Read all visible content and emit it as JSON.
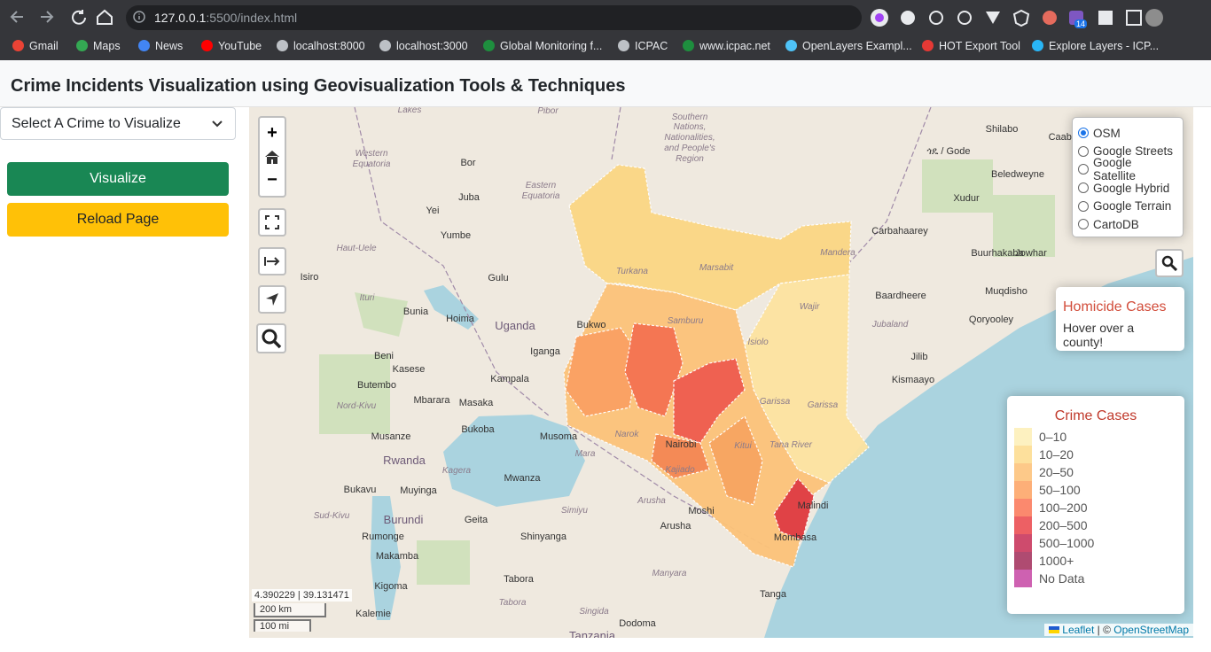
{
  "browser": {
    "url_host": "127.0.0.1",
    "url_path": ":5500/index.html",
    "extension_badge": "14",
    "bookmarks": [
      "Gmail",
      "Maps",
      "News",
      "YouTube",
      "localhost:8000",
      "localhost:3000",
      "Global Monitoring f...",
      "ICPAC",
      "www.icpac.net",
      "OpenLayers Exampl...",
      "HOT Export Tool",
      "Explore Layers - ICP..."
    ]
  },
  "header": {
    "title": "Crime Incidents Visualization using Geovisualization Tools & Techniques"
  },
  "sidebar": {
    "select_placeholder": "Select A Crime to Visualize",
    "visualize_button": "Visualize",
    "reload_button": "Reload Page"
  },
  "map": {
    "zoom_in": "+",
    "zoom_out": "−",
    "layers": [
      "OSM",
      "Google Streets",
      "Google Satellite",
      "Google Hybrid",
      "Google Terrain",
      "CartoDB"
    ],
    "selected_layer": "OSM",
    "info": {
      "title": "Homicide Cases",
      "text": "Hover over a county!"
    },
    "legend": {
      "title": "Crime Cases",
      "items": [
        {
          "label": "0–10",
          "color": "#fdedb0"
        },
        {
          "label": "10–20",
          "color": "#fdd883"
        },
        {
          "label": "20–50",
          "color": "#fdbb6c"
        },
        {
          "label": "50–100",
          "color": "#fd9b56"
        },
        {
          "label": "100–200",
          "color": "#fa6c4a"
        },
        {
          "label": "200–500",
          "color": "#e8383d"
        },
        {
          "label": "500–1000",
          "color": "#c21e48"
        },
        {
          "label": "1000+",
          "color": "#9b1e4d"
        },
        {
          "label": "No Data",
          "color": "#c23a9e"
        }
      ]
    },
    "coordinates": "4.390229 | 39.131471",
    "scale_metric": "200 km",
    "scale_imperial": "100 mi",
    "attribution_leaflet": "Leaflet",
    "attribution_separator": "| ©",
    "attribution_osm": "OpenStreetMap",
    "place_labels": [
      "Lakes",
      "Pibor",
      "Southern",
      "Nations,",
      "Nationalities,",
      "and People's",
      "Region",
      "Shilabo",
      "Caabudwaaq",
      "ጎዴ / Gode",
      "Western",
      "Equatoria",
      "Bor",
      "Juba",
      "Eastern",
      "Equatoria",
      "Yei",
      "Beledweyne",
      "Xudur",
      "Carbahaarey",
      "Yumbe",
      "Haut-Uele",
      "Turkana",
      "Marsabit",
      "Mandera",
      "Buurhakaba",
      "Jowhar",
      "Isiro",
      "Gulu",
      "Baardheere",
      "Muqdisho",
      "Ituri",
      "Wajir",
      "Samburu",
      "Bunia",
      "Hoima",
      "Uganda",
      "Qoryooley",
      "Jubaland",
      "Isiolo",
      "Bukwo",
      "Iganga",
      "Beni",
      "Kasese",
      "Kampala",
      "Jilib",
      "Kismaayo",
      "Butembo",
      "Mbarara",
      "Masaka",
      "Garissa",
      "Garissa",
      "Nord-Kivu",
      "Bukoba",
      "Musoma",
      "Narok",
      "Musanze",
      "Tana River",
      "Nairobi",
      "Kitui",
      "Rwanda",
      "Mara",
      "Kagera",
      "Kajiado",
      "Mwanza",
      "Bukavu",
      "Muyinga",
      "Simiyu",
      "Arusha",
      "Malindi",
      "Moshi",
      "Burundi",
      "Sud-Kivu",
      "Arusha",
      "Geita",
      "Rumonge",
      "Shinyanga",
      "Mombasa",
      "Makamba",
      "Kigoma",
      "Tabora",
      "Manyara",
      "Tanga",
      "Kalemie",
      "Singida",
      "Tabora",
      "Dodoma",
      "Tanzania"
    ]
  }
}
